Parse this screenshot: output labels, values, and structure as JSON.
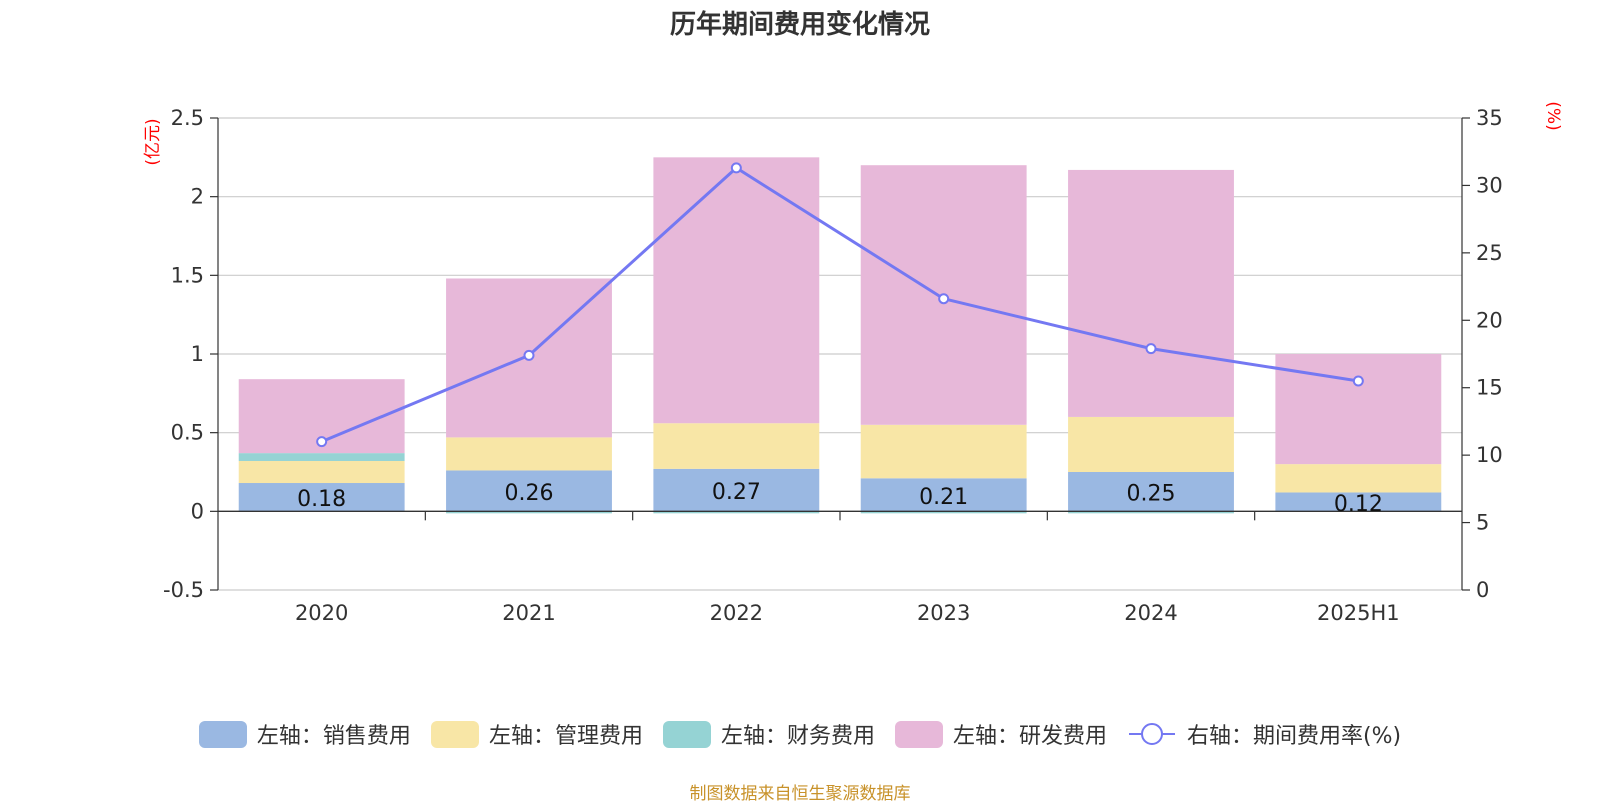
{
  "title": "历年期间费用变化情况",
  "left_axis_unit": "(亿元)",
  "right_axis_unit": "(%)",
  "source_note": "制图数据来自恒生聚源数据库",
  "colors": {
    "sales": "#9ab8e2",
    "admin": "#f8e6a6",
    "finance": "#95d3d4",
    "rnd": "#e7b8d9",
    "rate_line": "#7478f2",
    "unit_text": "#ff0000",
    "grid": "#cccccc",
    "axis": "#333333"
  },
  "legend": [
    {
      "label": "左轴：销售费用",
      "kind": "swatch",
      "color_key": "sales"
    },
    {
      "label": "左轴：管理费用",
      "kind": "swatch",
      "color_key": "admin"
    },
    {
      "label": "左轴：财务费用",
      "kind": "swatch",
      "color_key": "finance"
    },
    {
      "label": "左轴：研发费用",
      "kind": "swatch",
      "color_key": "rnd"
    },
    {
      "label": "右轴：期间费用率(%)",
      "kind": "line-circle",
      "color_key": "rate_line"
    }
  ],
  "chart_data": {
    "type": "bar",
    "stacked": true,
    "title": "历年期间费用变化情况",
    "categories": [
      "2020",
      "2021",
      "2022",
      "2023",
      "2024",
      "2025H1"
    ],
    "y_left": {
      "unit": "(亿元)",
      "range": [
        -0.5,
        2.5
      ],
      "ticks": [
        "-0.5",
        "0",
        "0.5",
        "1",
        "1.5",
        "2",
        "2.5"
      ]
    },
    "y_right": {
      "unit": "(%)",
      "range": [
        0,
        35
      ],
      "ticks": [
        "0",
        "5",
        "10",
        "15",
        "20",
        "25",
        "30",
        "35"
      ]
    },
    "grid": true,
    "legend_position": "bottom",
    "series": [
      {
        "name": "左轴：销售费用",
        "axis": "left",
        "type": "bar",
        "values": [
          0.18,
          0.26,
          0.27,
          0.21,
          0.25,
          0.12
        ],
        "labels": [
          "0.18",
          "0.26",
          "0.27",
          "0.21",
          "0.25",
          "0.12"
        ]
      },
      {
        "name": "左轴：管理费用",
        "axis": "left",
        "type": "bar",
        "values": [
          0.14,
          0.21,
          0.29,
          0.34,
          0.35,
          0.18
        ]
      },
      {
        "name": "左轴：财务费用",
        "axis": "left",
        "type": "bar",
        "values": [
          0.05,
          -0.01,
          -0.01,
          -0.01,
          -0.01,
          0.0
        ]
      },
      {
        "name": "左轴：研发费用",
        "axis": "left",
        "type": "bar",
        "values": [
          0.47,
          1.01,
          1.69,
          1.65,
          1.57,
          0.7
        ]
      },
      {
        "name": "右轴：期间费用率(%)",
        "axis": "right",
        "type": "line",
        "values": [
          11.0,
          17.4,
          31.3,
          21.6,
          17.9,
          15.5
        ]
      }
    ]
  }
}
